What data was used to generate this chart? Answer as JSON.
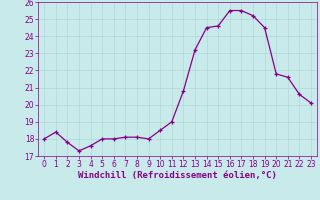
{
  "xlabel": "Windchill (Refroidissement éolien,°C)",
  "background_color": "#c8eaea",
  "grid_color": "#b0d8d8",
  "line_color": "#880088",
  "marker_color": "#880088",
  "x": [
    0,
    1,
    2,
    3,
    4,
    5,
    6,
    7,
    8,
    9,
    10,
    11,
    12,
    13,
    14,
    15,
    16,
    17,
    18,
    19,
    20,
    21,
    22,
    23
  ],
  "y": [
    18.0,
    18.4,
    17.8,
    17.3,
    17.6,
    18.0,
    18.0,
    18.1,
    18.1,
    18.0,
    18.5,
    19.0,
    20.8,
    23.2,
    24.5,
    24.6,
    25.5,
    25.5,
    25.2,
    24.5,
    21.8,
    21.6,
    20.6,
    20.1
  ],
  "ylim": [
    17,
    26
  ],
  "yticks": [
    17,
    18,
    19,
    20,
    21,
    22,
    23,
    24,
    25,
    26
  ],
  "xticks": [
    0,
    1,
    2,
    3,
    4,
    5,
    6,
    7,
    8,
    9,
    10,
    11,
    12,
    13,
    14,
    15,
    16,
    17,
    18,
    19,
    20,
    21,
    22,
    23
  ],
  "tick_fontsize": 5.5,
  "xlabel_fontsize": 6.5,
  "line_width": 0.9,
  "marker_size": 3.0
}
